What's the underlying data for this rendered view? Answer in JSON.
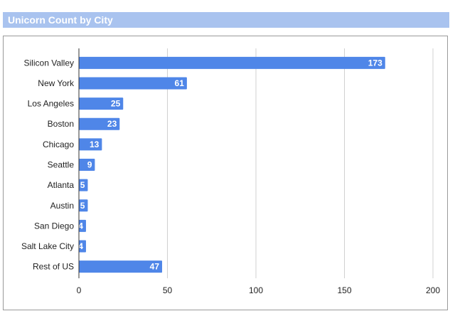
{
  "header": {
    "title": "Unicorn Count by City"
  },
  "colors": {
    "bar": "#4f86e8",
    "header_bg": "#a9c3ef",
    "grid": "#d0d0d0",
    "frame": "#9a9a9a"
  },
  "chart_data": {
    "type": "bar",
    "orientation": "horizontal",
    "title": "",
    "categories": [
      "Silicon Valley",
      "New York",
      "Los Angeles",
      "Boston",
      "Chicago",
      "Seattle",
      "Atlanta",
      "Austin",
      "San Diego",
      "Salt Lake City",
      "Rest of US"
    ],
    "values": [
      173,
      61,
      25,
      23,
      13,
      9,
      5,
      5,
      4,
      4,
      47
    ],
    "xlim": [
      0,
      200
    ],
    "xticks": [
      0,
      50,
      100,
      150,
      200
    ],
    "grid": true,
    "data_labels": true,
    "legend": "none"
  }
}
